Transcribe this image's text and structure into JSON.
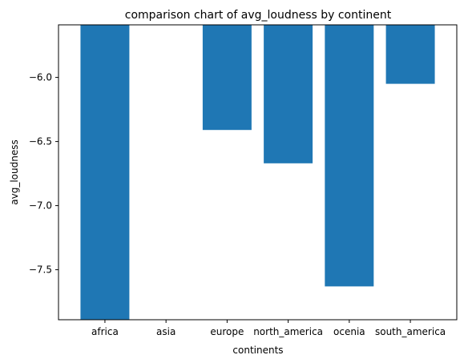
{
  "chart_data": {
    "type": "bar",
    "title": "comparison chart of avg_loudness by continent",
    "xlabel": "continents",
    "ylabel": "avg_loudness",
    "categories": [
      "africa",
      "asia",
      "europe",
      "north_america",
      "ocenia",
      "south_america"
    ],
    "values": [
      -7.89,
      null,
      -6.41,
      -6.67,
      -7.63,
      -6.05
    ],
    "ylim": [
      -7.89,
      -5.59
    ],
    "yticks": [
      -6.0,
      -6.5,
      -7.0,
      -7.5
    ],
    "ytick_labels": [
      "−6.0",
      "−6.5",
      "−7.0",
      "−7.5"
    ],
    "bar_color": "#1f77b4",
    "grid": false,
    "legend": "none"
  }
}
